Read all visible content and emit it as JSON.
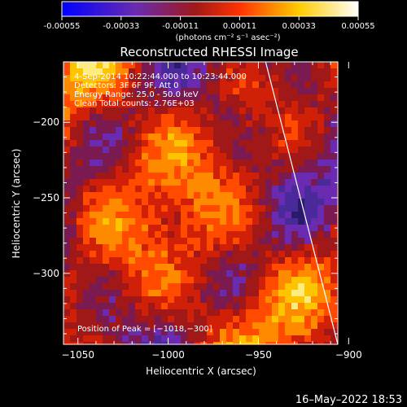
{
  "chart_data": {
    "type": "heatmap",
    "title": "Reconstructed RHESSI Image",
    "colorbar": {
      "ticks": [
        "-0.00055",
        "-0.00033",
        "-0.00011",
        "0.00011",
        "0.00033",
        "0.00055"
      ],
      "range": [
        -0.00055,
        0.00055
      ],
      "unit": "(photons cm⁻² s⁻¹ asec⁻²)",
      "colors": [
        "#0000ff",
        "#6a2bb0",
        "#a01818",
        "#ff4a00",
        "#ffd400",
        "#ffffff"
      ]
    },
    "xlabel": "Heliocentric X (arcsec)",
    "ylabel": "Heliocentric Y (arcsec)",
    "xlim": [
      -1058,
      -906
    ],
    "ylim": [
      -347,
      -160
    ],
    "xticks": [
      "−1050",
      "−1000",
      "−950",
      "−900"
    ],
    "xtick_values": [
      -1050,
      -1000,
      -950,
      -900
    ],
    "yticks": [
      "−200",
      "−250",
      "−300"
    ],
    "ytick_values": [
      -200,
      -250,
      -300
    ],
    "annotations": [
      "4-Sep-2014 10:22:44.000 to 10:23:44.000",
      "Detectors: 3F 6F 9F, Att 0",
      "Energy Range: 25.0 - 50.0 keV",
      "Clean     Total counts: 2.76E+03"
    ],
    "peak_label": "Position of Peak = [−1018,−300]",
    "limb_line": [
      [
        -946,
        -160
      ],
      [
        -906,
        -347
      ]
    ],
    "grid": false,
    "legend": "none"
  },
  "footer": {
    "timestamp": "16–May–2022 18:53"
  }
}
